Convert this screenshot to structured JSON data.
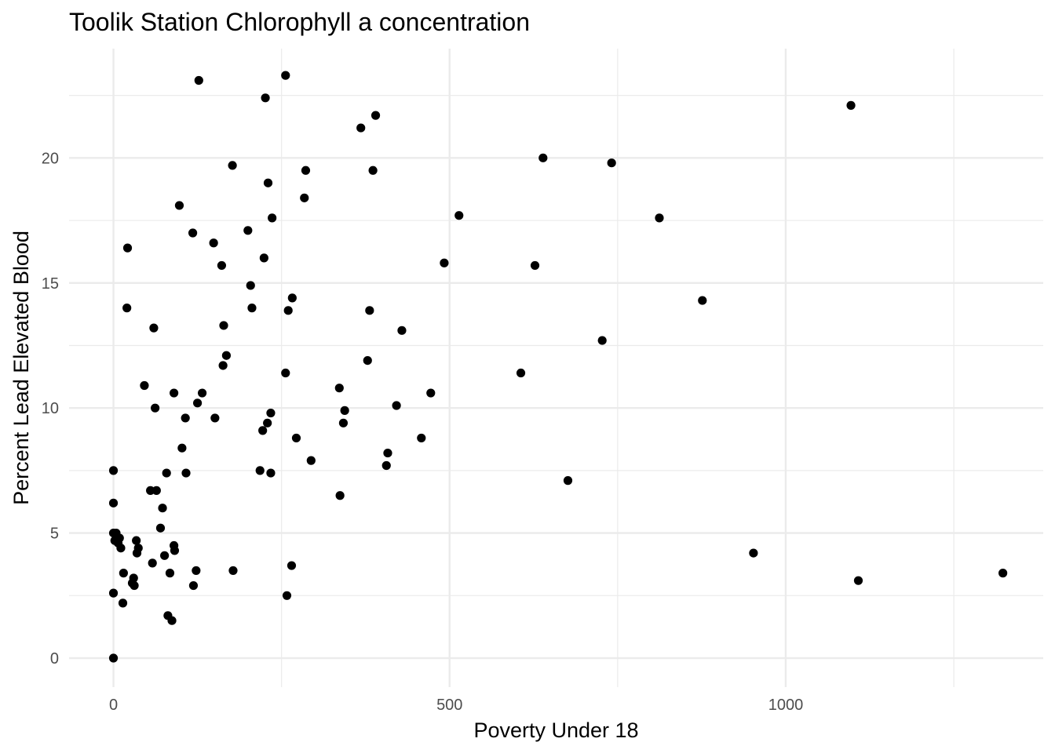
{
  "chart_data": {
    "type": "scatter",
    "title": "Toolik Station Chlorophyll a concentration",
    "xlabel": "Poverty Under 18",
    "ylabel": "Percent Lead Elevated Blood",
    "xlim": [
      -66,
      1383
    ],
    "ylim": [
      -1.16,
      24.37
    ],
    "x_ticks": [
      0,
      500,
      1000
    ],
    "x_tick_labels": [
      "0",
      "500",
      "1000"
    ],
    "y_ticks": [
      0,
      5,
      10,
      15,
      20
    ],
    "y_tick_labels": [
      "0",
      "5",
      "10",
      "15",
      "20"
    ],
    "grid": true,
    "point_color": "#000000",
    "points": [
      {
        "x": 0,
        "y": 0.0
      },
      {
        "x": 0,
        "y": 2.6
      },
      {
        "x": 0,
        "y": 5.0
      },
      {
        "x": 0,
        "y": 6.2
      },
      {
        "x": 0,
        "y": 7.5
      },
      {
        "x": 2,
        "y": 4.7
      },
      {
        "x": 4,
        "y": 5.0
      },
      {
        "x": 7,
        "y": 4.6
      },
      {
        "x": 9,
        "y": 4.8
      },
      {
        "x": 11,
        "y": 4.4
      },
      {
        "x": 14,
        "y": 2.2
      },
      {
        "x": 15,
        "y": 3.4
      },
      {
        "x": 20,
        "y": 14.0
      },
      {
        "x": 21,
        "y": 16.4
      },
      {
        "x": 28,
        "y": 3.0
      },
      {
        "x": 30,
        "y": 3.2
      },
      {
        "x": 31,
        "y": 2.9
      },
      {
        "x": 34,
        "y": 4.7
      },
      {
        "x": 35,
        "y": 4.2
      },
      {
        "x": 37,
        "y": 4.4
      },
      {
        "x": 46,
        "y": 10.9
      },
      {
        "x": 55,
        "y": 6.7
      },
      {
        "x": 58,
        "y": 3.8
      },
      {
        "x": 60,
        "y": 13.2
      },
      {
        "x": 62,
        "y": 10.0
      },
      {
        "x": 64,
        "y": 6.7
      },
      {
        "x": 70,
        "y": 5.2
      },
      {
        "x": 73,
        "y": 6.0
      },
      {
        "x": 76,
        "y": 4.1
      },
      {
        "x": 79,
        "y": 7.4
      },
      {
        "x": 81,
        "y": 1.7
      },
      {
        "x": 84,
        "y": 3.4
      },
      {
        "x": 87,
        "y": 1.5
      },
      {
        "x": 90,
        "y": 4.5
      },
      {
        "x": 90,
        "y": 10.6
      },
      {
        "x": 91,
        "y": 4.3
      },
      {
        "x": 98,
        "y": 18.1
      },
      {
        "x": 102,
        "y": 8.4
      },
      {
        "x": 107,
        "y": 9.6
      },
      {
        "x": 108,
        "y": 7.4
      },
      {
        "x": 118,
        "y": 17.0
      },
      {
        "x": 119,
        "y": 2.9
      },
      {
        "x": 123,
        "y": 3.5
      },
      {
        "x": 125,
        "y": 10.2
      },
      {
        "x": 127,
        "y": 23.1
      },
      {
        "x": 132,
        "y": 10.6
      },
      {
        "x": 149,
        "y": 16.6
      },
      {
        "x": 151,
        "y": 9.6
      },
      {
        "x": 161,
        "y": 15.7
      },
      {
        "x": 163,
        "y": 11.7
      },
      {
        "x": 164,
        "y": 13.3
      },
      {
        "x": 168,
        "y": 12.1
      },
      {
        "x": 177,
        "y": 19.7
      },
      {
        "x": 178,
        "y": 3.5
      },
      {
        "x": 200,
        "y": 17.1
      },
      {
        "x": 204,
        "y": 14.9
      },
      {
        "x": 206,
        "y": 14.0
      },
      {
        "x": 218,
        "y": 7.5
      },
      {
        "x": 222,
        "y": 9.1
      },
      {
        "x": 224,
        "y": 16.0
      },
      {
        "x": 226,
        "y": 22.4
      },
      {
        "x": 229,
        "y": 9.4
      },
      {
        "x": 230,
        "y": 19.0
      },
      {
        "x": 234,
        "y": 7.4
      },
      {
        "x": 234,
        "y": 9.8
      },
      {
        "x": 236,
        "y": 17.6
      },
      {
        "x": 256,
        "y": 23.3
      },
      {
        "x": 256,
        "y": 11.4
      },
      {
        "x": 258,
        "y": 2.5
      },
      {
        "x": 260,
        "y": 13.9
      },
      {
        "x": 265,
        "y": 3.7
      },
      {
        "x": 266,
        "y": 14.4
      },
      {
        "x": 272,
        "y": 8.8
      },
      {
        "x": 284,
        "y": 18.4
      },
      {
        "x": 286,
        "y": 19.5
      },
      {
        "x": 294,
        "y": 7.9
      },
      {
        "x": 336,
        "y": 10.8
      },
      {
        "x": 337,
        "y": 6.5
      },
      {
        "x": 342,
        "y": 9.4
      },
      {
        "x": 344,
        "y": 9.9
      },
      {
        "x": 368,
        "y": 21.2
      },
      {
        "x": 378,
        "y": 11.9
      },
      {
        "x": 381,
        "y": 13.9
      },
      {
        "x": 386,
        "y": 19.5
      },
      {
        "x": 390,
        "y": 21.7
      },
      {
        "x": 406,
        "y": 7.7
      },
      {
        "x": 408,
        "y": 8.2
      },
      {
        "x": 421,
        "y": 10.1
      },
      {
        "x": 429,
        "y": 13.1
      },
      {
        "x": 458,
        "y": 8.8
      },
      {
        "x": 472,
        "y": 10.6
      },
      {
        "x": 492,
        "y": 15.8
      },
      {
        "x": 514,
        "y": 17.7
      },
      {
        "x": 606,
        "y": 11.4
      },
      {
        "x": 627,
        "y": 15.7
      },
      {
        "x": 639,
        "y": 20.0
      },
      {
        "x": 676,
        "y": 7.1
      },
      {
        "x": 727,
        "y": 12.7
      },
      {
        "x": 741,
        "y": 19.8
      },
      {
        "x": 812,
        "y": 17.6
      },
      {
        "x": 876,
        "y": 14.3
      },
      {
        "x": 952,
        "y": 4.2
      },
      {
        "x": 1097,
        "y": 22.1
      },
      {
        "x": 1108,
        "y": 3.1
      },
      {
        "x": 1323,
        "y": 3.4
      }
    ]
  }
}
